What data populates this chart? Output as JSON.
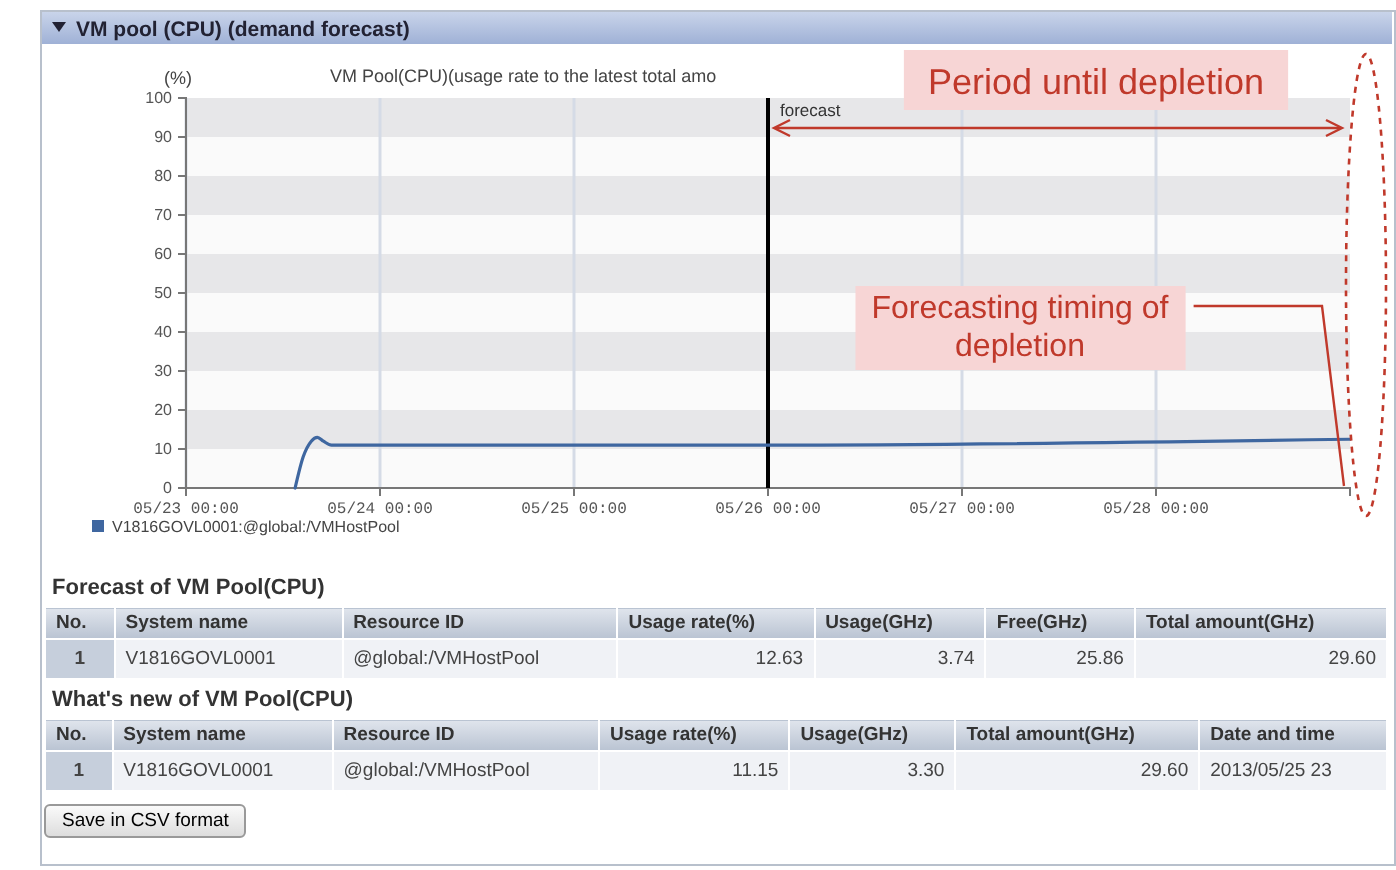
{
  "chart_data": [
    {
      "type": "line",
      "title": "VM pool (CPU) (demand forecast)",
      "subtitle": "VM Pool(CPU)(usage rate to the latest total amo",
      "ylabel": "(%)",
      "xlim": [
        "2013-05-23T00:00",
        "2013-05-29T00:00"
      ],
      "xticks": [
        {
          "value": "2013-05-23T00:00",
          "label": "05/23 00:00"
        },
        {
          "value": "2013-05-24T00:00",
          "label": "05/24 00:00"
        },
        {
          "value": "2013-05-25T00:00",
          "label": "05/25 00:00"
        },
        {
          "value": "2013-05-26T00:00",
          "label": "05/26 00:00"
        },
        {
          "value": "2013-05-27T00:00",
          "label": "05/27 00:00"
        },
        {
          "value": "2013-05-28T00:00",
          "label": "05/28 00:00"
        }
      ],
      "ylim": [
        0,
        100
      ],
      "yticks": [
        0,
        10,
        20,
        30,
        40,
        50,
        60,
        70,
        80,
        90,
        100
      ],
      "grid": true,
      "legend": "bottom left",
      "series": [
        {
          "name": "V1816GOVL0001:@global:/VMHostPool",
          "color": "#3f67a0",
          "x": [
            "2013-05-23T13:30",
            "2013-05-23T14:30",
            "2013-05-23T15:30",
            "2013-05-23T16:15",
            "2013-05-23T17:00",
            "2013-05-23T18:00",
            "2013-05-26T00:00",
            "2013-05-29T00:00"
          ],
          "values": [
            0,
            8,
            12,
            13,
            12,
            11,
            11,
            12.5
          ]
        }
      ],
      "ref_lines": [
        {
          "axis": "x",
          "value": "2013-05-26T00:00",
          "label": "forecast",
          "color": "#000000"
        }
      ],
      "annotations": [
        "Period until depletion",
        "Forecasting timing of depletion"
      ]
    },
    {
      "type": "other",
      "title": "Forecast of VM Pool(CPU)",
      "annotations": [
        "No.",
        "System name",
        "Resource ID",
        "Usage rate(%)",
        "Usage(GHz)",
        "Free(GHz)",
        "Total amount(GHz)",
        "1",
        "V1816GOVL0001",
        "@global:/VMHostPool",
        "12.63",
        "3.74",
        "25.86",
        "29.60"
      ]
    },
    {
      "type": "other",
      "title": "What's new of VM Pool(CPU)",
      "annotations": [
        "No.",
        "System name",
        "Resource ID",
        "Usage rate(%)",
        "Usage(GHz)",
        "Total amount(GHz)",
        "Date and time",
        "1",
        "V1816GOVL0001",
        "@global:/VMHostPool",
        "11.15",
        "3.30",
        "29.60",
        "2013/05/25 23",
        "Save in CSV format"
      ]
    }
  ]
}
